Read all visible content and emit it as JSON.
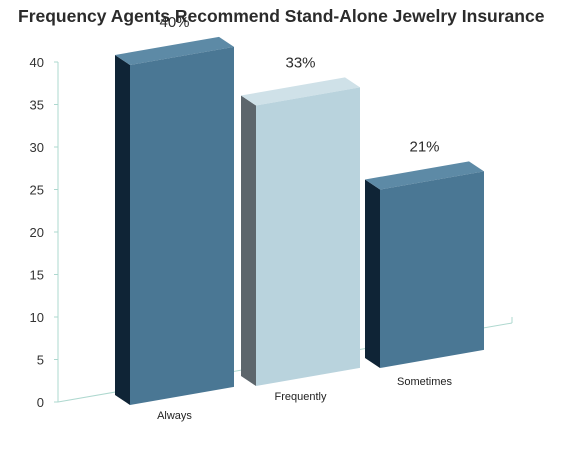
{
  "chart_data": {
    "type": "bar",
    "title": "Frequency Agents Recommend Stand-Alone Jewelry Insurance",
    "categories": [
      "Always",
      "Frequently",
      "Sometimes"
    ],
    "values": [
      40,
      33,
      21
    ],
    "data_labels": [
      "40%",
      "33%",
      "21%"
    ],
    "ylim": [
      0,
      40
    ],
    "yticks": [
      "0",
      "5",
      "10",
      "15",
      "20",
      "25",
      "30",
      "35",
      "40"
    ],
    "xlabel": "",
    "ylabel": "",
    "grid": false,
    "style": "3d",
    "colors": {
      "front": [
        "#4a7794",
        "#b9d3dd",
        "#4a7794"
      ],
      "top": [
        "#5d8aa6",
        "#cfe1e8",
        "#5d8aa6"
      ],
      "side": [
        "#0f2436",
        "#5d666c",
        "#0f2436"
      ],
      "axis": "#aed8cf"
    }
  }
}
